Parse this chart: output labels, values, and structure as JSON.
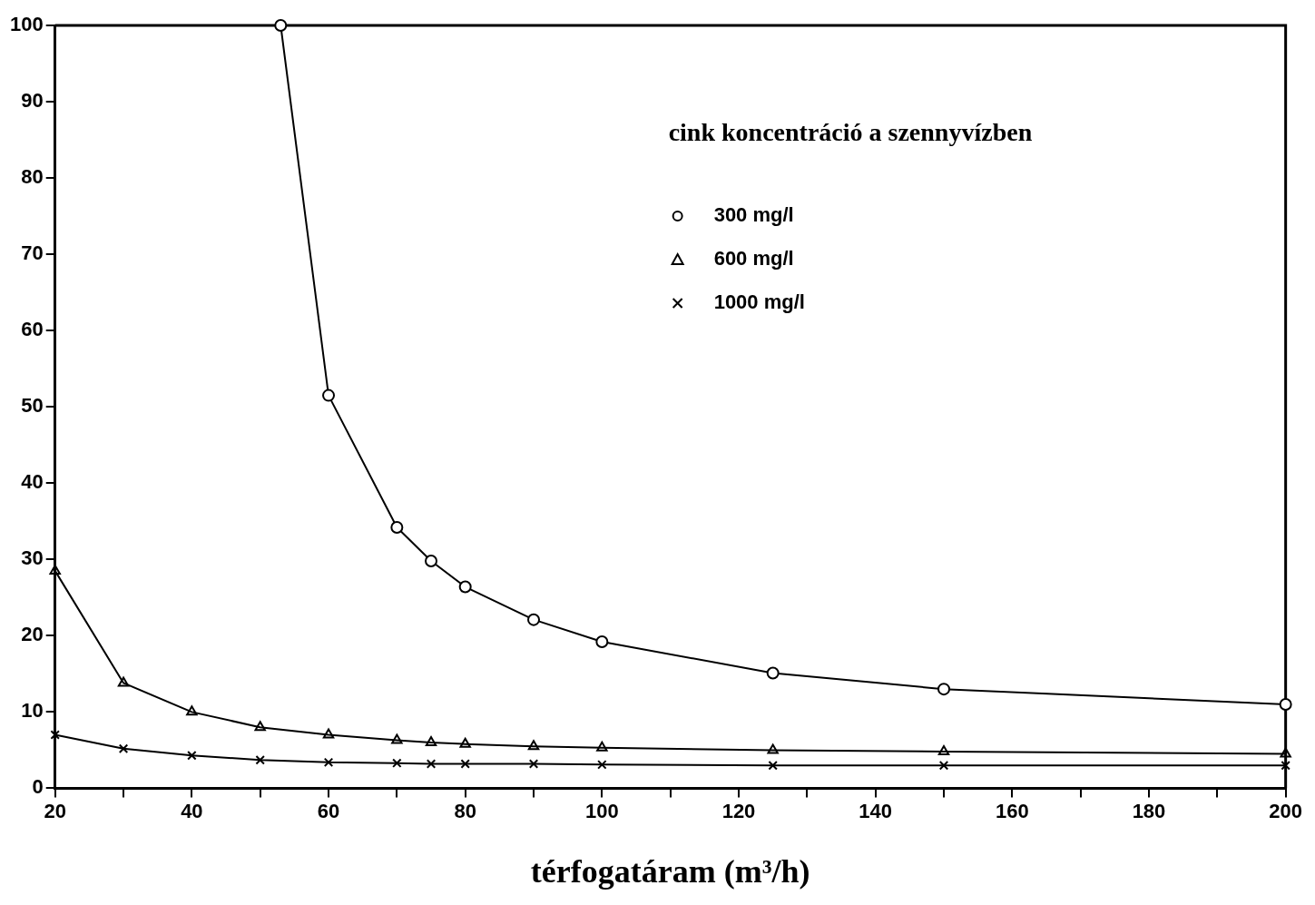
{
  "chart_data": {
    "type": "line",
    "xlabel": "térfogatáram (m³/h)",
    "legend_title": "cink koncentráció a szennyvízben",
    "legend": "top right",
    "grid": false,
    "xlim": [
      20,
      200
    ],
    "ylim": [
      0,
      100
    ],
    "xticks": [
      20,
      {
        "value": 30,
        "label": null
      },
      40,
      {
        "value": 50,
        "label": null
      },
      60,
      {
        "value": 70,
        "label": null
      },
      80,
      {
        "value": 90,
        "label": null
      },
      100,
      {
        "value": 110,
        "label": null
      },
      120,
      {
        "value": 130,
        "label": null
      },
      140,
      {
        "value": 150,
        "label": null
      },
      160,
      {
        "value": 170,
        "label": null
      },
      180,
      {
        "value": 190,
        "label": null
      },
      200
    ],
    "yticks": [
      0,
      10,
      20,
      30,
      40,
      50,
      60,
      70,
      80,
      90,
      100
    ],
    "series": [
      {
        "name": "300 mg/l",
        "color": "#000000",
        "marker": "circle",
        "x": [
          53,
          60,
          70,
          75,
          80,
          90,
          100,
          125,
          150,
          200
        ],
        "values": [
          100,
          51.5,
          34.2,
          29.8,
          26.4,
          22.1,
          19.2,
          15.1,
          13,
          11
        ]
      },
      {
        "name": "600 mg/l",
        "color": "#000000",
        "marker": "triangle",
        "x": [
          20,
          30,
          40,
          50,
          60,
          70,
          75,
          80,
          90,
          100,
          125,
          150,
          200
        ],
        "values": [
          28.5,
          13.8,
          10,
          8,
          7,
          6.3,
          6,
          5.8,
          5.5,
          5.3,
          5,
          4.8,
          4.5
        ]
      },
      {
        "name": "1000 mg/l",
        "color": "#000000",
        "marker": "cross",
        "x": [
          20,
          30,
          40,
          50,
          60,
          70,
          75,
          80,
          90,
          100,
          125,
          150,
          200
        ],
        "values": [
          7,
          5.2,
          4.3,
          3.7,
          3.4,
          3.3,
          3.2,
          3.2,
          3.2,
          3.1,
          3,
          3,
          3
        ]
      }
    ]
  }
}
